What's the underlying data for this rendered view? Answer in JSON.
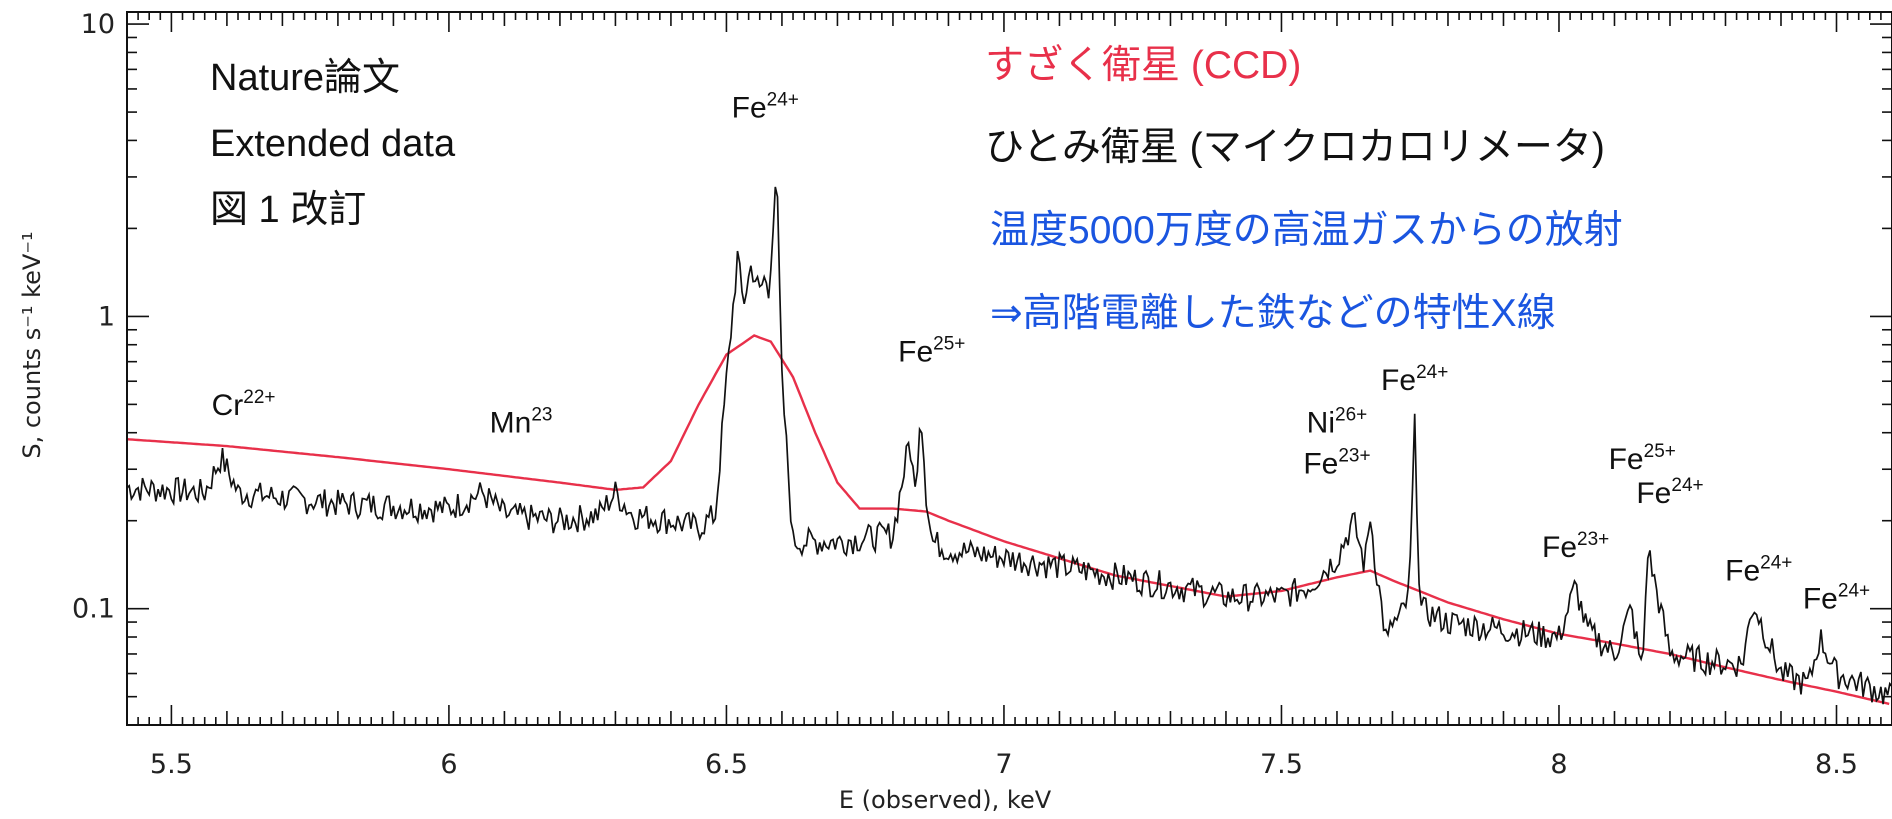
{
  "chart_data": {
    "type": "line",
    "title": "",
    "xlabel": "E (observed), keV",
    "ylabel": "S, counts s⁻¹ keV⁻¹",
    "xlim": [
      5.42,
      8.6
    ],
    "ylim": [
      0.04,
      11
    ],
    "yscale": "log",
    "x_ticks": [
      {
        "value": 5.5,
        "label": "5.5"
      },
      {
        "value": 6.0,
        "label": "6"
      },
      {
        "value": 6.5,
        "label": "6.5"
      },
      {
        "value": 7.0,
        "label": "7"
      },
      {
        "value": 7.5,
        "label": "7.5"
      },
      {
        "value": 8.0,
        "label": "8"
      },
      {
        "value": 8.5,
        "label": "8.5"
      }
    ],
    "y_ticks": [
      {
        "value": 10,
        "label": "10"
      },
      {
        "value": 1,
        "label": "1"
      },
      {
        "value": 0.1,
        "label": "0.1"
      }
    ],
    "series": [
      {
        "color": "#e8304a",
        "x": [
          5.42,
          5.6,
          5.8,
          6.0,
          6.2,
          6.3,
          6.35,
          6.4,
          6.45,
          6.5,
          6.55,
          6.58,
          6.62,
          6.66,
          6.7,
          6.74,
          6.8,
          6.86,
          6.9,
          7.0,
          7.2,
          7.4,
          7.5,
          7.6,
          7.66,
          7.7,
          7.8,
          7.9,
          8.0,
          8.1,
          8.2,
          8.3,
          8.4,
          8.5,
          8.6
        ],
        "y": [
          0.38,
          0.36,
          0.33,
          0.3,
          0.27,
          0.255,
          0.26,
          0.32,
          0.5,
          0.74,
          0.86,
          0.82,
          0.62,
          0.4,
          0.27,
          0.22,
          0.22,
          0.215,
          0.2,
          0.17,
          0.13,
          0.11,
          0.115,
          0.128,
          0.135,
          0.125,
          0.105,
          0.092,
          0.082,
          0.076,
          0.07,
          0.063,
          0.057,
          0.052,
          0.047
        ]
      },
      {
        "color": "#111111",
        "x": [
          5.42,
          5.5,
          5.56,
          5.59,
          5.62,
          5.7,
          5.8,
          5.9,
          6.0,
          6.06,
          6.1,
          6.2,
          6.27,
          6.3,
          6.33,
          6.4,
          6.45,
          6.48,
          6.5,
          6.52,
          6.53,
          6.545,
          6.56,
          6.57,
          6.575,
          6.59,
          6.6,
          6.62,
          6.7,
          6.8,
          6.83,
          6.84,
          6.85,
          6.86,
          6.87,
          6.9,
          7.0,
          7.1,
          7.2,
          7.3,
          7.4,
          7.5,
          7.55,
          7.6,
          7.63,
          7.65,
          7.66,
          7.67,
          7.69,
          7.7,
          7.71,
          7.73,
          7.74,
          7.75,
          7.8,
          7.9,
          8.0,
          8.03,
          8.05,
          8.1,
          8.13,
          8.15,
          8.16,
          8.2,
          8.3,
          8.33,
          8.35,
          8.4,
          8.45,
          8.47,
          8.5,
          8.6
        ],
        "y": [
          0.26,
          0.255,
          0.25,
          0.33,
          0.25,
          0.24,
          0.23,
          0.225,
          0.22,
          0.25,
          0.21,
          0.2,
          0.21,
          0.25,
          0.21,
          0.2,
          0.19,
          0.21,
          0.6,
          1.6,
          1.1,
          1.5,
          1.2,
          1.4,
          1.1,
          3.3,
          0.6,
          0.17,
          0.17,
          0.18,
          0.38,
          0.25,
          0.5,
          0.25,
          0.17,
          0.16,
          0.15,
          0.14,
          0.13,
          0.12,
          0.11,
          0.11,
          0.12,
          0.15,
          0.2,
          0.14,
          0.21,
          0.14,
          0.075,
          0.09,
          0.09,
          0.11,
          0.42,
          0.1,
          0.09,
          0.085,
          0.08,
          0.12,
          0.085,
          0.07,
          0.1,
          0.06,
          0.16,
          0.07,
          0.065,
          0.065,
          0.105,
          0.06,
          0.055,
          0.08,
          0.06,
          0.05
        ]
      }
    ],
    "annotations": [
      {
        "base": "Cr",
        "sup": "22+",
        "x": 5.63,
        "y": 0.46
      },
      {
        "base": "Mn",
        "sup": "23",
        "x": 6.13,
        "y": 0.4
      },
      {
        "base": "Fe",
        "sup": "24+",
        "x": 6.57,
        "y": 4.8
      },
      {
        "base": "Fe",
        "sup": "25+",
        "x": 6.87,
        "y": 0.7
      },
      {
        "base": "Ni",
        "sup": "26+",
        "x": 7.6,
        "y": 0.4
      },
      {
        "base": "Fe",
        "sup": "23+",
        "x": 7.6,
        "y": 0.29
      },
      {
        "base": "Fe",
        "sup": "24+",
        "x": 7.74,
        "y": 0.56
      },
      {
        "base": "Fe",
        "sup": "25+",
        "x": 8.15,
        "y": 0.3
      },
      {
        "base": "Fe",
        "sup": "24+",
        "x": 8.2,
        "y": 0.23
      },
      {
        "base": "Fe",
        "sup": "23+",
        "x": 8.03,
        "y": 0.15
      },
      {
        "base": "Fe",
        "sup": "24+",
        "x": 8.36,
        "y": 0.125
      },
      {
        "base": "Fe",
        "sup": "24+",
        "x": 8.5,
        "y": 0.1
      }
    ]
  },
  "notes": [
    "Nature論文",
    "Extended data",
    "図 1 改訂"
  ],
  "legend_lines": [
    {
      "text": "すざく衛星 (CCD)",
      "color": "#e8304a"
    },
    {
      "text": "ひとみ衛星 (マイクロカロリメータ)",
      "color": "#111111"
    },
    {
      "text": "温度5000万度の高温ガスからの放射",
      "color": "#1a55e0"
    },
    {
      "text": "⇒高階電離した鉄などの特性X線",
      "color": "#1a55e0"
    }
  ]
}
